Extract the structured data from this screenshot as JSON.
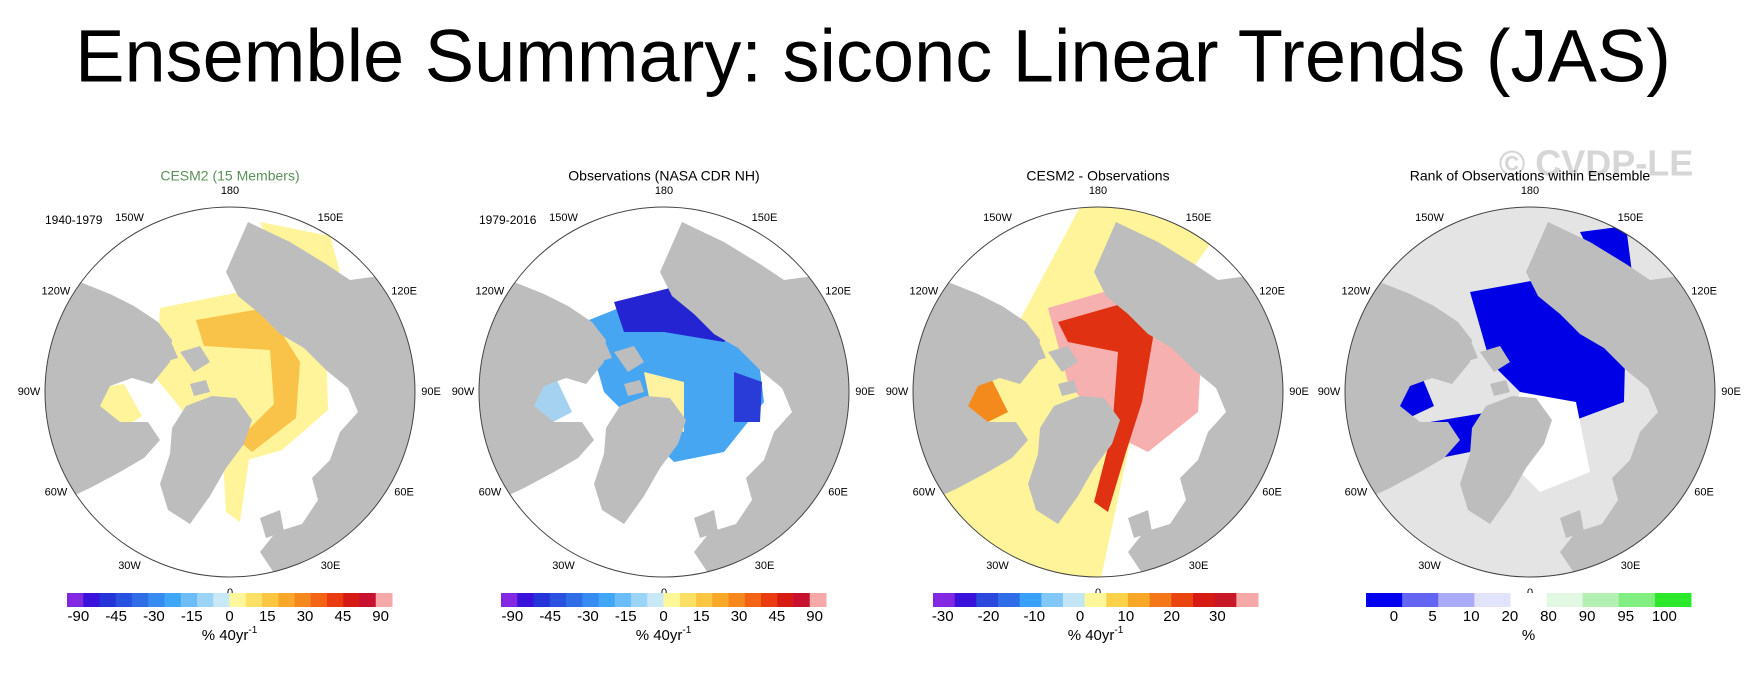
{
  "title": "Ensemble Summary: siconc Linear Trends (JAS)",
  "watermark": "© CVDP-LE",
  "longitude_labels": [
    "180",
    "150E",
    "120E",
    "90E",
    "60E",
    "30E",
    "0",
    "30W",
    "60W",
    "90W",
    "120W",
    "150W"
  ],
  "panels": [
    {
      "title": "CESM2 (15 Members)",
      "title_color": "#5b8f5b",
      "period": "1940-1979",
      "colorbar": {
        "colors": [
          "#8228e0",
          "#3a12dc",
          "#2434d8",
          "#2a52e0",
          "#306ee8",
          "#368cf0",
          "#40a6f6",
          "#6cbcf8",
          "#9cd4f8",
          "#c8e8f8",
          "#fff79a",
          "#fde166",
          "#fcc645",
          "#f9a82a",
          "#f6881c",
          "#f26414",
          "#ea3c10",
          "#d81a14",
          "#c81030",
          "#f5a8a8"
        ],
        "ticks": [
          -90,
          -45,
          -30,
          -15,
          0,
          15,
          30,
          45,
          90
        ],
        "unit": "% 40yr",
        "unit_exponent": "-1"
      }
    },
    {
      "title": "Observations (NASA CDR NH)",
      "title_color": "#000000",
      "period": "1979-2016",
      "colorbar": {
        "colors": [
          "#8228e0",
          "#3a12dc",
          "#2434d8",
          "#2a52e0",
          "#306ee8",
          "#368cf0",
          "#40a6f6",
          "#6cbcf8",
          "#9cd4f8",
          "#c8e8f8",
          "#fff79a",
          "#fde166",
          "#fcc645",
          "#f9a82a",
          "#f6881c",
          "#f26414",
          "#ea3c10",
          "#d81a14",
          "#c81030",
          "#f5a8a8"
        ],
        "ticks": [
          -90,
          -45,
          -30,
          -15,
          0,
          15,
          30,
          45,
          90
        ],
        "unit": "% 40yr",
        "unit_exponent": "-1"
      }
    },
    {
      "title": "CESM2 - Observations",
      "title_color": "#000000",
      "colorbar": {
        "colors": [
          "#8228e0",
          "#3a12dc",
          "#2a48dc",
          "#306ee8",
          "#38a0f6",
          "#80c8f8",
          "#c4e4f8",
          "#fff79a",
          "#fcd24a",
          "#f9a82a",
          "#f47818",
          "#ea4410",
          "#d81a14",
          "#c81828",
          "#f5a8a8"
        ],
        "ticks": [
          -30,
          -20,
          -10,
          0,
          10,
          20,
          30
        ],
        "unit": "% 40yr",
        "unit_exponent": "-1"
      }
    },
    {
      "title": "Rank of Observations within Ensemble",
      "title_color": "#000000",
      "colorbar": {
        "colors": [
          "#0000ee",
          "#6464f2",
          "#aaaaf6",
          "#e2e2f8",
          "#ffffff",
          "#e2f8e2",
          "#b4f0b4",
          "#80ee80",
          "#2ee82e"
        ],
        "ticks": [
          0,
          5,
          10,
          20,
          80,
          90,
          95,
          100
        ],
        "unit": "%"
      }
    }
  ]
}
